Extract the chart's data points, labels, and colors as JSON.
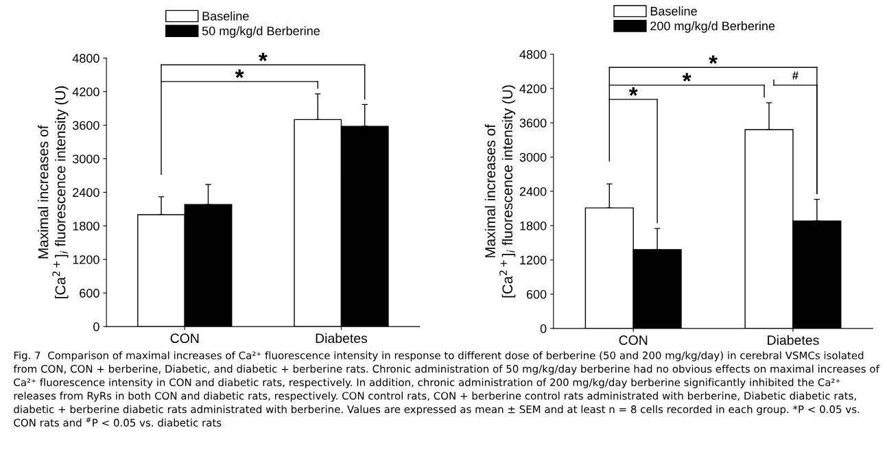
{
  "chart_data": [
    {
      "type": "bar",
      "categories": [
        "CON",
        "Diabetes"
      ],
      "ylabel": "Maximal increases of\n[Ca$^{2+}$]$_{i}$ fluorescence intensity (U)",
      "ylim": [
        0,
        4800
      ],
      "yticks": [
        0,
        600,
        1200,
        1800,
        2400,
        3000,
        3600,
        4200,
        4800
      ],
      "legend": "top left",
      "grid": false,
      "series": [
        {
          "name": "Baseline",
          "color": "#ffffff",
          "values": [
            2000,
            3700
          ],
          "errors": [
            [
              2000,
              2320
            ],
            [
              3700,
              4160
            ]
          ]
        },
        {
          "name": "50 mg/kg/d Berberine",
          "color": "#000000",
          "values": [
            2180,
            3580
          ],
          "errors": [
            [
              2180,
              2540
            ],
            [
              3580,
              3970
            ]
          ]
        }
      ],
      "annotations": [
        "*",
        "*"
      ]
    },
    {
      "type": "bar",
      "categories": [
        "CON",
        "Diabetes"
      ],
      "ylabel": "Maximal increases of\n[Ca$^{2+}$]$_{i}$ fluorescence intensity (U)",
      "ylim": [
        0,
        4800
      ],
      "yticks": [
        0,
        600,
        1200,
        1800,
        2400,
        3000,
        3600,
        4200,
        4800
      ],
      "legend": "top left",
      "grid": false,
      "series": [
        {
          "name": "Baseline",
          "color": "#ffffff",
          "values": [
            2110,
            3480
          ],
          "errors": [
            [
              2110,
              2530
            ],
            [
              3480,
              3950
            ]
          ]
        },
        {
          "name": "200 mg/kg/d Berberine",
          "color": "#000000",
          "values": [
            1380,
            1880
          ],
          "errors": [
            [
              1380,
              1750
            ],
            [
              1880,
              2260
            ]
          ]
        }
      ],
      "annotations": [
        "*",
        "*",
        "*",
        "#",
        "Fig. 7  Comparison of maximal increases of Ca²⁺ fluorescence intensity in response to different dose of berberine (50 and 200 mg/kg/day) in cerebral VSMCs isolated from CON, CON + berberine, Diabetic, and diabetic + berberine rats. Chronic administration of 50 mg/kg/day berberine had no obvious effects on maximal increases of Ca²⁺ fluorescence intensity in CON and diabetic rats, respectively. In addition, chronic administration of 200 mg/kg/day berberine significantly inhibited the Ca²⁺ releases from RyRs in both CON and diabetic rats, respectively. CON control rats, CON + berberine control rats administrated with berberine, Diabetic diabetic rats, diabetic + berberine diabetic rats administrated with berberine. Values are expressed as mean ± SEM and at least n = 8 cells recorded in each group. *P < 0.05 vs. CON rats and $^{#}$P < 0.05 vs. diabetic rats"
      ]
    }
  ]
}
